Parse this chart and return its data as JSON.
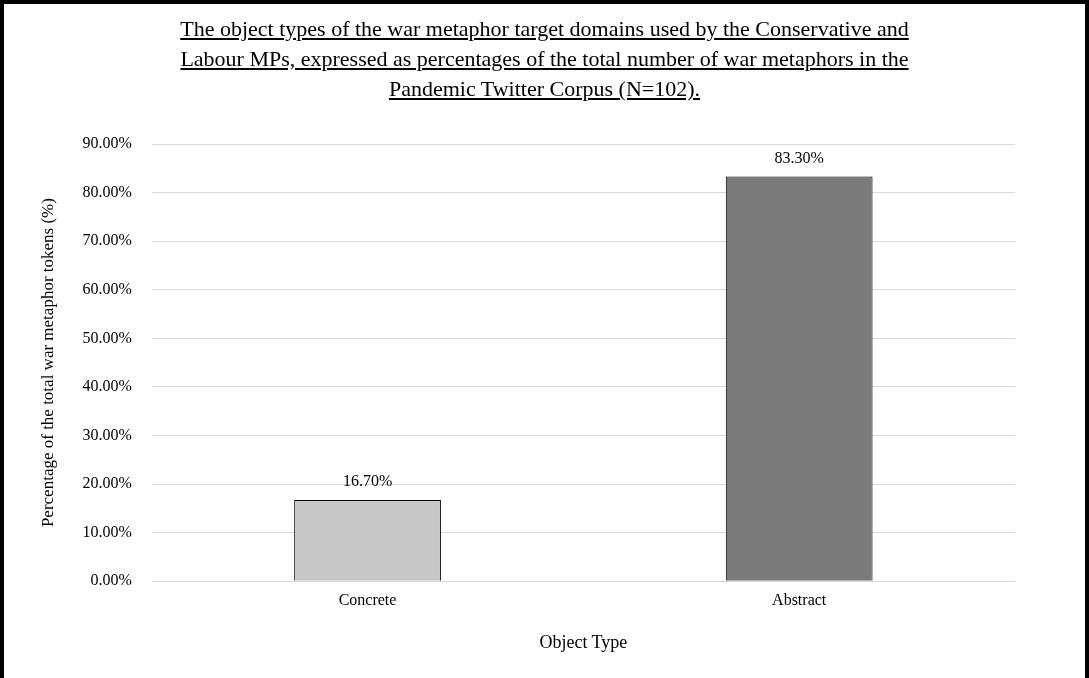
{
  "chart_data": {
    "type": "bar",
    "title": "The object types of the war metaphor target domains used by the Conservative and Labour MPs, expressed as percentages of the total number of war metaphors in the Pandemic Twitter Corpus (N=102).",
    "xlabel": "Object Type",
    "ylabel": "Percentage of the total war metaphor tokens (%)",
    "categories": [
      "Concrete",
      "Abstract"
    ],
    "values": [
      16.7,
      83.3
    ],
    "colors": [
      "#c8c8c8",
      "#7b7b7b"
    ],
    "value_labels": [
      "16.70%",
      "83.30%"
    ],
    "ylim": [
      0,
      90
    ],
    "yticks": [
      {
        "value": 0,
        "label": "0.00%"
      },
      {
        "value": 10,
        "label": "10.00%"
      },
      {
        "value": 20,
        "label": "20.00%"
      },
      {
        "value": 30,
        "label": "30.00%"
      },
      {
        "value": 40,
        "label": "40.00%"
      },
      {
        "value": 50,
        "label": "50.00%"
      },
      {
        "value": 60,
        "label": "60.00%"
      },
      {
        "value": 70,
        "label": "70.00%"
      },
      {
        "value": 80,
        "label": "80.00%"
      },
      {
        "value": 90,
        "label": "90.00%"
      }
    ],
    "grid": "y",
    "legend": false
  }
}
